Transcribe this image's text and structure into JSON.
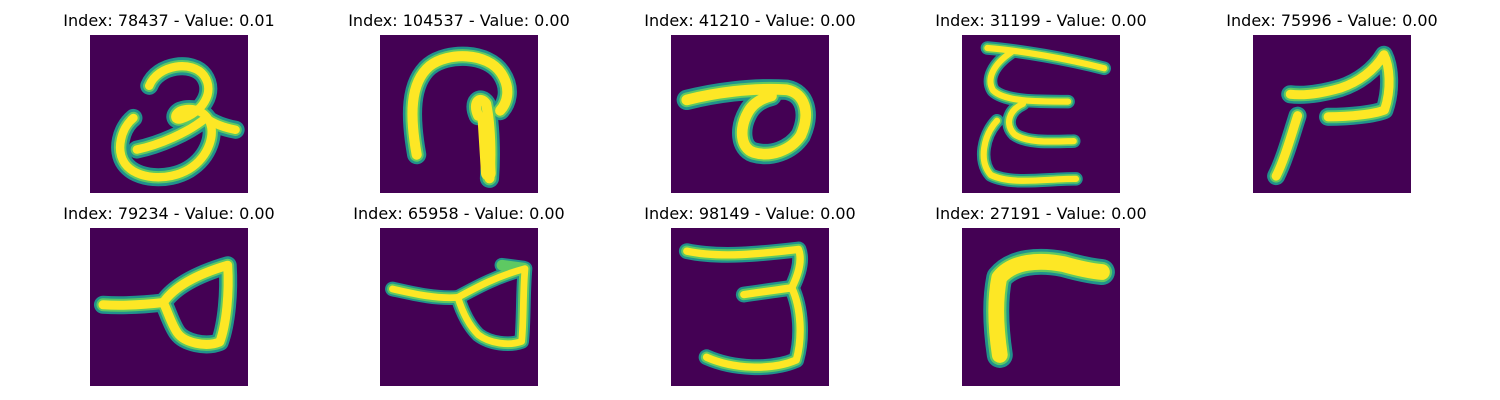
{
  "colors": {
    "background": "#440154",
    "stroke_core": "#fde725",
    "stroke_mid": "#5ec962",
    "stroke_edge": "#21918c"
  },
  "tiles": [
    {
      "index": "78437",
      "value": "0.01",
      "title": "Index: 78437 - Value: 0.01"
    },
    {
      "index": "104537",
      "value": "0.00",
      "title": "Index: 104537 - Value: 0.00"
    },
    {
      "index": "41210",
      "value": "0.00",
      "title": "Index: 41210 - Value: 0.00"
    },
    {
      "index": "31199",
      "value": "0.00",
      "title": "Index: 31199 - Value: 0.00"
    },
    {
      "index": "75996",
      "value": "0.00",
      "title": "Index: 75996 - Value: 0.00"
    },
    {
      "index": "79234",
      "value": "0.00",
      "title": "Index: 79234 - Value: 0.00"
    },
    {
      "index": "65958",
      "value": "0.00",
      "title": "Index: 65958 - Value: 0.00"
    },
    {
      "index": "98149",
      "value": "0.00",
      "title": "Index: 98149 - Value: 0.00"
    },
    {
      "index": "27191",
      "value": "0.00",
      "title": "Index: 27191 - Value: 0.00"
    }
  ]
}
